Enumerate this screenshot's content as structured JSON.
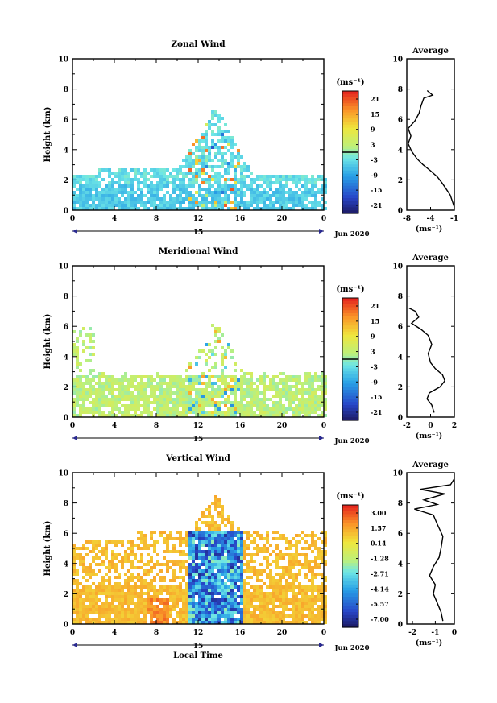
{
  "date_label": "Jun 2020",
  "day_label": "15",
  "xlabel_bottom": "Local Time",
  "x_ticks": [
    "0",
    "4",
    "8",
    "12",
    "16",
    "20",
    "0"
  ],
  "y_ticks": [
    "0",
    "2",
    "4",
    "6",
    "8",
    "10"
  ],
  "ylabel": "Height (km)",
  "unit_label": "(ms⁻¹)",
  "profile_title": "Average",
  "chart_data": [
    {
      "type": "heatmap",
      "title": "Zonal Wind",
      "ylabel": "Height (km)",
      "xlim": [
        0,
        24
      ],
      "ylim": [
        0,
        10
      ],
      "colorbar": {
        "ticks": [
          "21",
          "15",
          "9",
          "3",
          "-3",
          "-9",
          "-15",
          "-21"
        ],
        "range": [
          -21,
          21
        ]
      },
      "profile": {
        "title": "Average",
        "xlabel": "(ms⁻¹)",
        "xticks": [
          "-8",
          "-4",
          "-1"
        ],
        "xlim": [
          -8,
          -1
        ],
        "points": [
          [
            -1.0,
            0.2
          ],
          [
            -1.3,
            0.6
          ],
          [
            -1.6,
            1.0
          ],
          [
            -2.2,
            1.4
          ],
          [
            -2.8,
            1.8
          ],
          [
            -3.5,
            2.2
          ],
          [
            -4.5,
            2.6
          ],
          [
            -5.6,
            3.0
          ],
          [
            -6.5,
            3.4
          ],
          [
            -7.3,
            3.9
          ],
          [
            -7.8,
            4.4
          ],
          [
            -7.4,
            4.9
          ],
          [
            -7.8,
            5.4
          ],
          [
            -6.8,
            5.9
          ],
          [
            -6.2,
            6.4
          ],
          [
            -5.9,
            6.9
          ],
          [
            -5.5,
            7.4
          ],
          [
            -4.2,
            7.6
          ],
          [
            -5.0,
            7.9
          ]
        ]
      }
    },
    {
      "type": "heatmap",
      "title": "Meridional Wind",
      "ylabel": "Height (km)",
      "xlim": [
        0,
        24
      ],
      "ylim": [
        0,
        10
      ],
      "colorbar": {
        "ticks": [
          "21",
          "15",
          "9",
          "3",
          "-3",
          "-9",
          "-15",
          "-21"
        ],
        "range": [
          -21,
          21
        ]
      },
      "profile": {
        "title": "Average",
        "xlabel": "(ms⁻¹)",
        "xticks": [
          "-2",
          "0",
          "2"
        ],
        "xlim": [
          -2,
          2
        ],
        "points": [
          [
            0.3,
            0.3
          ],
          [
            0.1,
            0.8
          ],
          [
            -0.3,
            1.2
          ],
          [
            -0.1,
            1.6
          ],
          [
            0.8,
            2.0
          ],
          [
            1.2,
            2.4
          ],
          [
            1.0,
            2.8
          ],
          [
            0.4,
            3.2
          ],
          [
            0.0,
            3.6
          ],
          [
            -0.2,
            4.2
          ],
          [
            0.1,
            4.8
          ],
          [
            -0.2,
            5.4
          ],
          [
            -0.8,
            5.8
          ],
          [
            -1.6,
            6.2
          ],
          [
            -1.0,
            6.6
          ],
          [
            -1.3,
            7.0
          ],
          [
            -1.8,
            7.2
          ]
        ]
      }
    },
    {
      "type": "heatmap",
      "title": "Vertical Wind",
      "ylabel": "Height (km)",
      "xlabel": "Local Time",
      "xlim": [
        0,
        24
      ],
      "ylim": [
        0,
        10
      ],
      "colorbar": {
        "ticks": [
          "3.00",
          "1.57",
          "0.14",
          "-1.28",
          "-2.71",
          "-4.14",
          "-5.57",
          "-7.00"
        ],
        "range": [
          -7.0,
          3.0
        ]
      },
      "profile": {
        "title": "Average",
        "xlabel": "(ms⁻¹)",
        "xticks": [
          "-2",
          "-1",
          "0"
        ],
        "xlim": [
          -2.5,
          0
        ],
        "points": [
          [
            -0.6,
            0.2
          ],
          [
            -0.7,
            0.8
          ],
          [
            -0.9,
            1.4
          ],
          [
            -1.1,
            2.0
          ],
          [
            -1.0,
            2.6
          ],
          [
            -1.3,
            3.2
          ],
          [
            -1.1,
            3.8
          ],
          [
            -0.8,
            4.4
          ],
          [
            -0.7,
            5.0
          ],
          [
            -0.6,
            5.8
          ],
          [
            -0.9,
            6.6
          ],
          [
            -1.1,
            7.2
          ],
          [
            -2.1,
            7.6
          ],
          [
            -0.9,
            7.9
          ],
          [
            -1.6,
            8.2
          ],
          [
            -0.5,
            8.6
          ],
          [
            -1.8,
            8.9
          ],
          [
            -0.2,
            9.2
          ],
          [
            0,
            9.6
          ]
        ]
      }
    }
  ]
}
